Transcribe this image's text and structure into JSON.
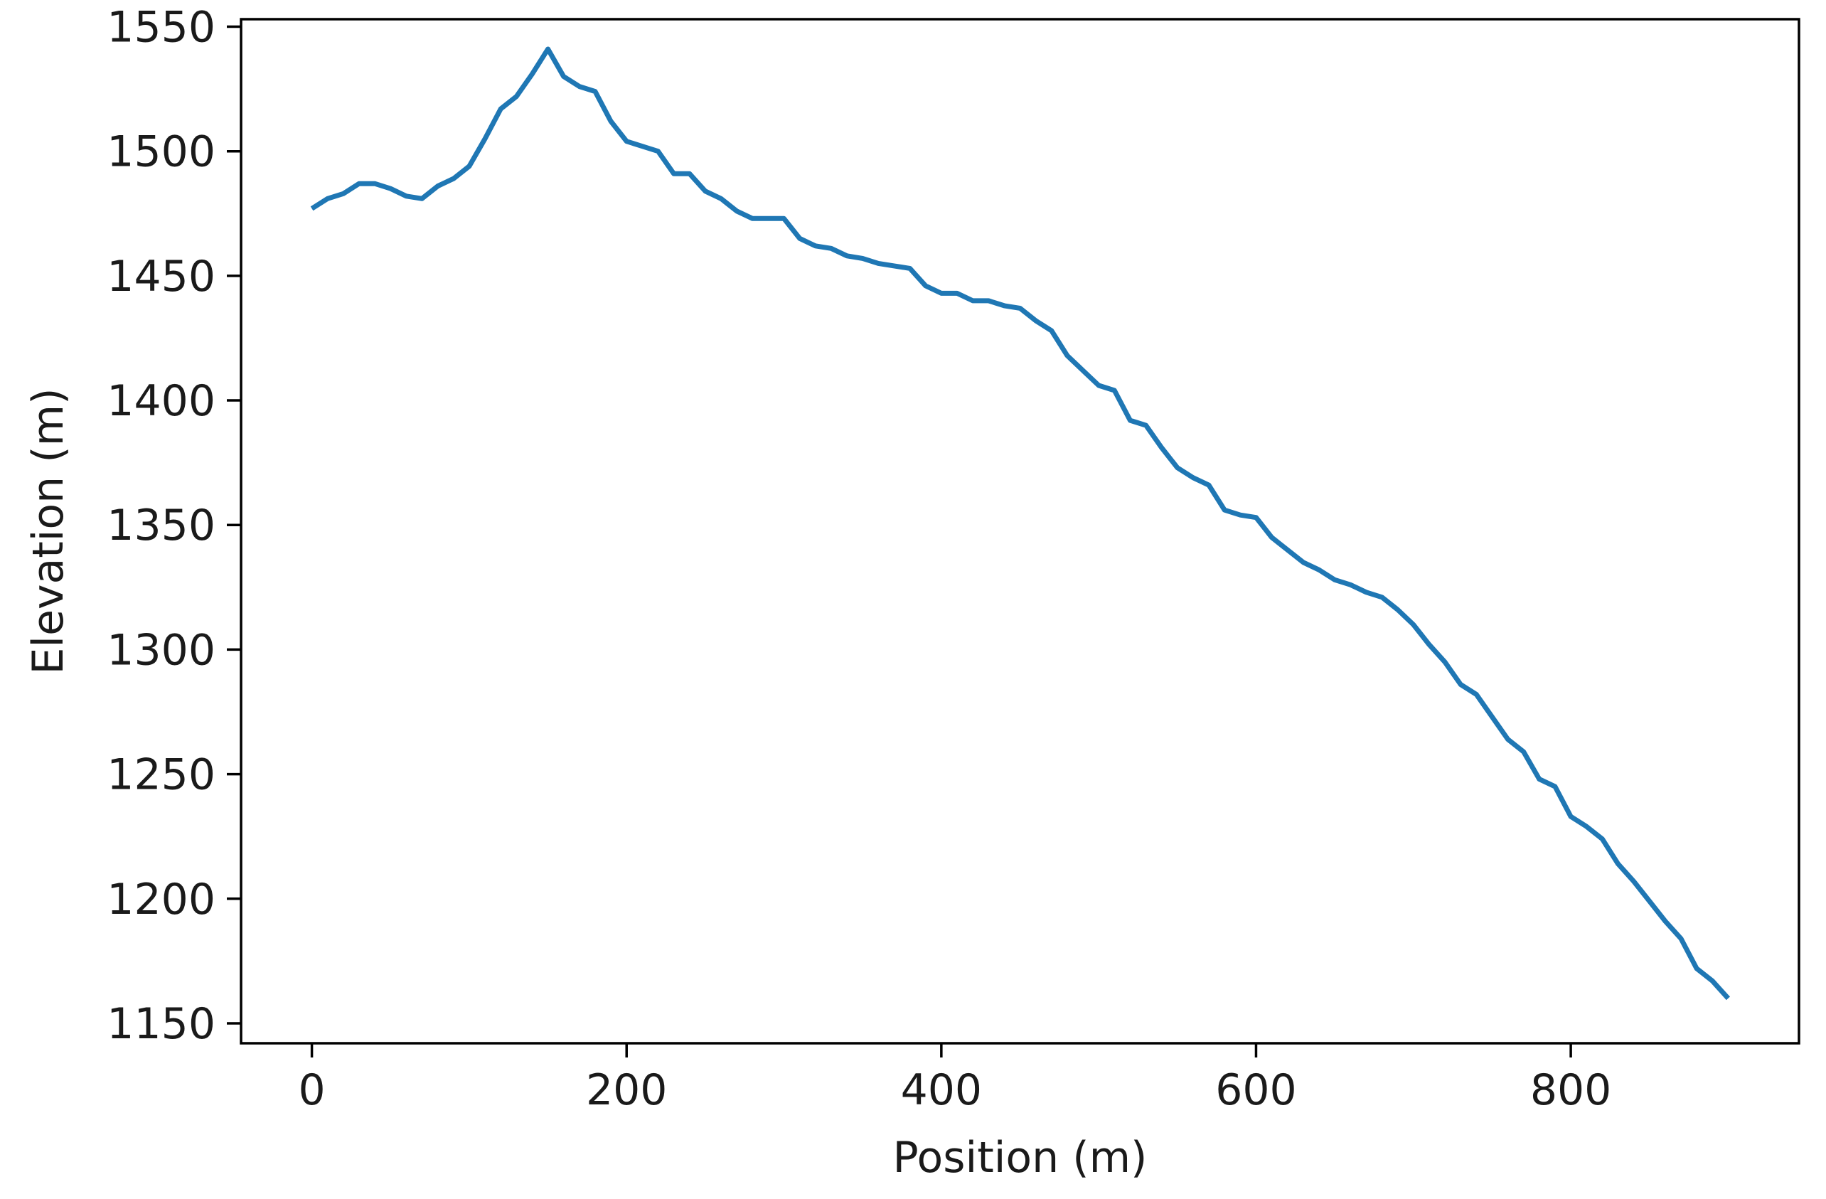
{
  "chart_data": {
    "type": "line",
    "title": "",
    "xlabel": "Position (m)",
    "ylabel": "Elevation (m)",
    "xlim": [
      -45,
      945
    ],
    "ylim": [
      1142,
      1553
    ],
    "xticks": [
      0,
      200,
      400,
      600,
      800
    ],
    "yticks": [
      1150,
      1200,
      1250,
      1300,
      1350,
      1400,
      1450,
      1500,
      1550
    ],
    "xtick_labels": [
      "0",
      "200",
      "400",
      "600",
      "800"
    ],
    "ytick_labels": [
      "1150",
      "1200",
      "1250",
      "1300",
      "1350",
      "1400",
      "1450",
      "1500",
      "1550"
    ],
    "grid": false,
    "legend": "none",
    "series": [
      {
        "color": "#1f77b4",
        "x": [
          0,
          10,
          20,
          30,
          40,
          50,
          60,
          70,
          80,
          90,
          100,
          110,
          120,
          130,
          140,
          150,
          160,
          170,
          180,
          190,
          200,
          210,
          220,
          230,
          240,
          250,
          260,
          270,
          280,
          290,
          300,
          310,
          320,
          330,
          340,
          350,
          360,
          370,
          380,
          390,
          400,
          410,
          420,
          430,
          440,
          450,
          460,
          470,
          480,
          490,
          500,
          510,
          520,
          530,
          540,
          550,
          560,
          570,
          580,
          590,
          600,
          610,
          620,
          630,
          640,
          650,
          660,
          670,
          680,
          690,
          700,
          710,
          720,
          730,
          740,
          750,
          760,
          770,
          780,
          790,
          800,
          810,
          820,
          830,
          840,
          850,
          860,
          870,
          880,
          890,
          900
        ],
        "y": [
          1477,
          1481,
          1483,
          1487,
          1487,
          1485,
          1482,
          1481,
          1486,
          1489,
          1494,
          1505,
          1517,
          1522,
          1531,
          1541,
          1530,
          1526,
          1524,
          1512,
          1504,
          1502,
          1500,
          1491,
          1491,
          1484,
          1481,
          1476,
          1473,
          1473,
          1473,
          1465,
          1462,
          1461,
          1458,
          1457,
          1455,
          1454,
          1453,
          1446,
          1443,
          1443,
          1440,
          1440,
          1438,
          1437,
          1432,
          1428,
          1418,
          1412,
          1406,
          1404,
          1392,
          1390,
          1381,
          1373,
          1369,
          1366,
          1356,
          1354,
          1353,
          1345,
          1340,
          1335,
          1332,
          1328,
          1326,
          1323,
          1321,
          1316,
          1310,
          1302,
          1295,
          1286,
          1282,
          1273,
          1264,
          1259,
          1248,
          1245,
          1233,
          1229,
          1224,
          1214,
          1207,
          1199,
          1191,
          1184,
          1172,
          1167,
          1160
        ]
      }
    ]
  }
}
